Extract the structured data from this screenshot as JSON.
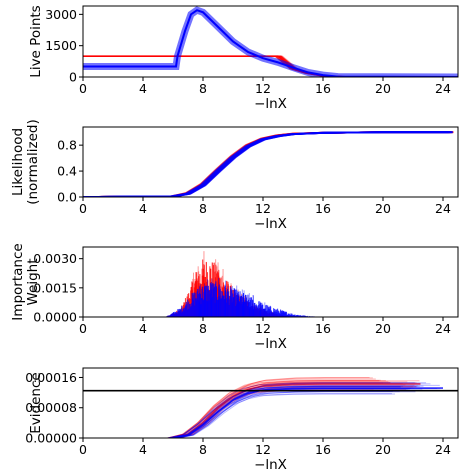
{
  "colors": {
    "red": "#ff0000",
    "blue": "#0000ff",
    "black": "#000000"
  },
  "chart_data": [
    {
      "type": "line",
      "ylabel": "Live Points",
      "xlabel": "−lnX",
      "xlim": [
        0,
        25
      ],
      "ylim": [
        0,
        3400
      ],
      "xticks": [
        0,
        4,
        8,
        12,
        16,
        20,
        24
      ],
      "xtick_labels": [
        "0",
        "4",
        "8",
        "12",
        "16",
        "20",
        "24"
      ],
      "yticks": [
        0,
        1500,
        3000
      ],
      "ytick_labels": [
        "0",
        "1500",
        "3000"
      ],
      "series": [
        {
          "color": "#ff0000",
          "x": [
            0,
            13.0,
            13.5,
            14.0,
            15.0,
            16.0,
            17.5,
            25.0
          ],
          "y": [
            1000,
            1000,
            700,
            400,
            180,
            60,
            10,
            0
          ]
        },
        {
          "color": "#0000ff",
          "x": [
            0,
            6.2,
            6.3,
            6.8,
            7.2,
            7.6,
            8.0,
            9.0,
            10.0,
            11.0,
            12.0,
            13.0,
            14.0,
            15.0,
            16.0,
            17.0,
            25.0
          ],
          "y": [
            500,
            500,
            1000,
            2200,
            3000,
            3200,
            3100,
            2400,
            1700,
            1200,
            900,
            700,
            450,
            220,
            90,
            20,
            0
          ]
        }
      ]
    },
    {
      "type": "line",
      "ylabel": "Likelihood\n(normalized)",
      "xlabel": "−lnX",
      "xlim": [
        0,
        25
      ],
      "ylim": [
        0,
        1.08
      ],
      "xticks": [
        0,
        4,
        8,
        12,
        16,
        20,
        24
      ],
      "xtick_labels": [
        "0",
        "4",
        "8",
        "12",
        "16",
        "20",
        "24"
      ],
      "yticks": [
        0.0,
        0.4,
        0.8
      ],
      "ytick_labels": [
        "0.0",
        "0.4",
        "0.8"
      ],
      "series": [
        {
          "color": "#ff0000",
          "x": [
            0,
            6.0,
            7.0,
            8.0,
            9.0,
            10.0,
            11.0,
            12.0,
            13.0,
            14.0,
            16.0,
            20.0,
            24.5
          ],
          "y": [
            0,
            0.01,
            0.06,
            0.2,
            0.42,
            0.63,
            0.8,
            0.9,
            0.95,
            0.975,
            0.99,
            1.0,
            1.0
          ]
        },
        {
          "color": "#0000ff",
          "x": [
            0,
            6.0,
            7.0,
            8.0,
            9.0,
            10.0,
            11.0,
            12.0,
            13.0,
            14.0,
            16.0,
            20.0,
            24.5
          ],
          "y": [
            0,
            0.01,
            0.05,
            0.18,
            0.4,
            0.61,
            0.78,
            0.89,
            0.94,
            0.97,
            0.99,
            1.0,
            1.0
          ]
        }
      ]
    },
    {
      "type": "area",
      "ylabel": "Importance\nWeight",
      "xlabel": "−lnX",
      "xlim": [
        0,
        25
      ],
      "ylim": [
        0,
        0.0036
      ],
      "xticks": [
        0,
        4,
        8,
        12,
        16,
        20,
        24
      ],
      "xtick_labels": [
        "0",
        "4",
        "8",
        "12",
        "16",
        "20",
        "24"
      ],
      "yticks": [
        0,
        0.0015,
        0.003
      ],
      "ytick_labels": [
        "0.0000",
        "0.0015",
        "0.0030"
      ],
      "series": [
        {
          "color": "#ff0000",
          "x": [
            5.5,
            6.5,
            7.0,
            7.5,
            8.0,
            8.5,
            9.0,
            9.5,
            10.0,
            11.0,
            12.0,
            13.0,
            14.0
          ],
          "y": [
            0,
            0.0003,
            0.0009,
            0.0016,
            0.0021,
            0.0021,
            0.0018,
            0.0014,
            0.001,
            0.0006,
            0.0003,
            0.0001,
            0
          ]
        },
        {
          "color": "#0000ff",
          "x": [
            5.5,
            6.5,
            7.0,
            7.5,
            8.0,
            8.5,
            9.0,
            10.0,
            11.0,
            12.0,
            13.0,
            14.0,
            15.0,
            16.0
          ],
          "y": [
            0,
            0.00035,
            0.0007,
            0.001,
            0.0012,
            0.0013,
            0.00125,
            0.00105,
            0.0008,
            0.0005,
            0.0003,
            0.00012,
            4e-05,
            0
          ]
        }
      ]
    },
    {
      "type": "line",
      "ylabel": "Evidence",
      "xlabel": "−lnX",
      "xlim": [
        0,
        25
      ],
      "ylim": [
        0,
        0.000185
      ],
      "xticks": [
        0,
        4,
        8,
        12,
        16,
        20,
        24
      ],
      "xtick_labels": [
        "0",
        "4",
        "8",
        "12",
        "16",
        "20",
        "24"
      ],
      "yticks": [
        0,
        8e-05,
        0.00016
      ],
      "ytick_labels": [
        "0.00000",
        "0.00008",
        "0.00016"
      ],
      "reference_line": {
        "y": 0.000125,
        "color": "#000000"
      },
      "series": [
        {
          "color": "#ff0000",
          "x": [
            6.0,
            7.0,
            8.0,
            9.0,
            10.0,
            11.0,
            12.0,
            14.0,
            16.0,
            20.0,
            22.5
          ],
          "y": [
            0,
            1e-05,
            4e-05,
            8e-05,
            0.00011,
            0.000128,
            0.000137,
            0.000142,
            0.000143,
            0.000143,
            0.000143
          ]
        },
        {
          "color": "#0000ff",
          "x": [
            6.0,
            7.0,
            8.0,
            9.0,
            10.0,
            11.0,
            12.0,
            14.0,
            16.0,
            20.0,
            24.0
          ],
          "y": [
            0,
            8e-06,
            3.5e-05,
            7e-05,
            0.0001,
            0.000118,
            0.000127,
            0.000131,
            0.000132,
            0.000132,
            0.000132
          ]
        }
      ]
    }
  ]
}
